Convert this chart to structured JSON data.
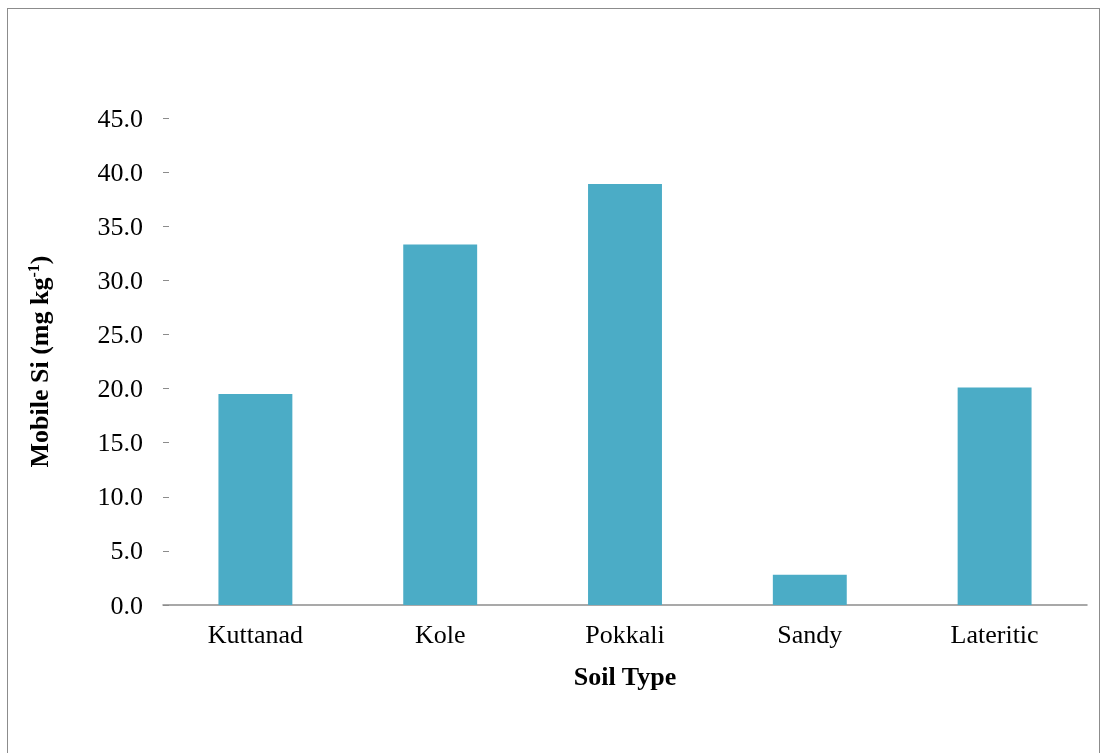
{
  "chart_data": {
    "type": "bar",
    "xlabel": "Soil Type",
    "ylabel": "Mobile Si (mg kg$^{-1}$)",
    "categories": [
      "Kuttanad",
      "Kole",
      "Pokkali",
      "Sandy",
      "Lateritic"
    ],
    "values": [
      19.5,
      33.3,
      38.9,
      2.8,
      20.1
    ],
    "color": "#4bacc6",
    "ylim": [
      0,
      45
    ],
    "yticks": [
      {
        "value": 0,
        "label": "0.0"
      },
      {
        "value": 5,
        "label": "5.0"
      },
      {
        "value": 10,
        "label": "10.0"
      },
      {
        "value": 15,
        "label": "15.0"
      },
      {
        "value": 20,
        "label": "20.0"
      },
      {
        "value": 25,
        "label": "25.0"
      },
      {
        "value": 30,
        "label": "30.0"
      },
      {
        "value": 35,
        "label": "35.0"
      },
      {
        "value": 40,
        "label": "40.0"
      },
      {
        "value": 45,
        "label": "45.0"
      }
    ],
    "grid": false
  }
}
